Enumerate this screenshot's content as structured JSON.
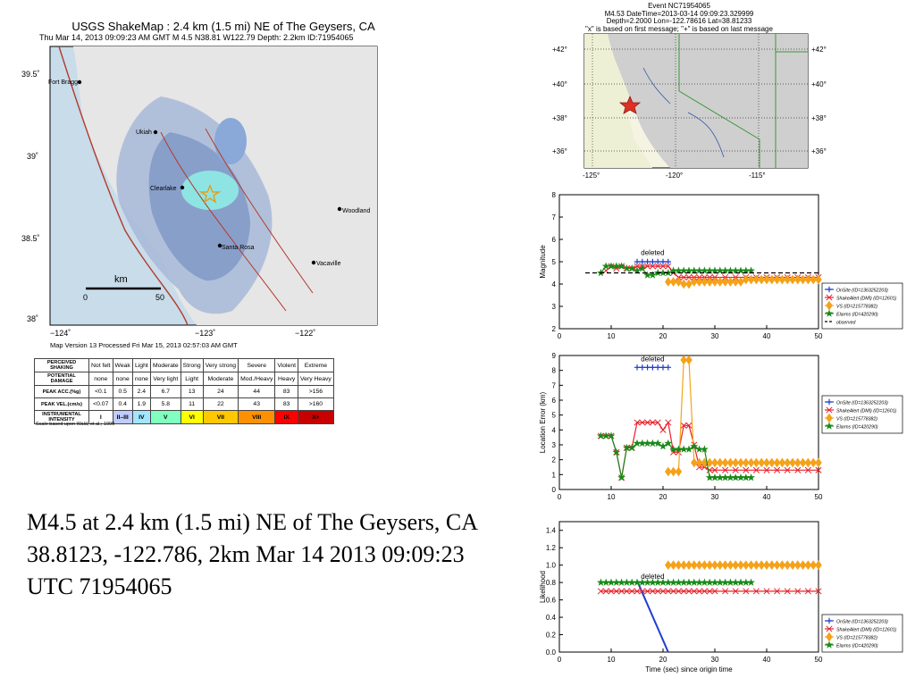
{
  "shakemap": {
    "title": "USGS ShakeMap : 2.4 km (1.5 mi) NE of The Geysers, CA",
    "subtitle": "Thu Mar 14, 2013 09:09:23 AM GMT   M 4.5   N38.81 W122.79   Depth: 2.2km   ID:71954065",
    "version": "Map Version 13 Processed Fri Mar 15, 2013 02:57:03 AM GMT",
    "lat_labels": [
      "39.5˚",
      "39˚",
      "38.5˚",
      "38˚"
    ],
    "lon_labels": [
      "−124˚",
      "−123˚",
      "−122˚"
    ],
    "towns": [
      "Fort Bragg",
      "Ukiah",
      "Clearlake",
      "Santa Rosa",
      "Woodland",
      "Vacaville"
    ],
    "scale": {
      "unit": "km",
      "start": "0",
      "end": "50"
    },
    "colors": {
      "ocean": "#c8dcea",
      "land": "#e6e6e6",
      "shaded": "#a7b8d7",
      "shaded_core": "#7e96c6",
      "epicenter_zone": "#8ff0e6",
      "fault": "#b33a2b",
      "epicenter": "#e0a020"
    }
  },
  "intensity_legend": {
    "rows": [
      {
        "header": "PERCEIVED SHAKING",
        "cells": [
          "Not felt",
          "Weak",
          "Light",
          "Moderate",
          "Strong",
          "Very strong",
          "Severe",
          "Violent",
          "Extreme"
        ]
      },
      {
        "header": "POTENTIAL DAMAGE",
        "cells": [
          "none",
          "none",
          "none",
          "Very light",
          "Light",
          "Moderate",
          "Mod./Heavy",
          "Heavy",
          "Very Heavy"
        ]
      },
      {
        "header": "PEAK ACC.(%g)",
        "cells": [
          "<0.1",
          "0.5",
          "2.4",
          "6.7",
          "13",
          "24",
          "44",
          "83",
          ">156"
        ]
      },
      {
        "header": "PEAK VEL.(cm/s)",
        "cells": [
          "<0.07",
          "0.4",
          "1.9",
          "5.8",
          "11",
          "22",
          "43",
          "83",
          ">160"
        ]
      },
      {
        "header": "INSTRUMENTAL INTENSITY",
        "cells": [
          "I",
          "II–III",
          "IV",
          "V",
          "VI",
          "VII",
          "VIII",
          "IX",
          "X+"
        ]
      }
    ],
    "intensity_colors": [
      "#ffffff",
      "#bfccff",
      "#a0e6ff",
      "#80ffbf",
      "#ffff00",
      "#ffc800",
      "#ff9100",
      "#ff0000",
      "#c80000"
    ],
    "note": "Scale based upon Wald, et al.; 1999"
  },
  "caption": "M4.5 at 2.4 km (1.5 mi) NE of The Geysers, CA 38.8123, -122.786, 2km Mar 14 2013 09:09:23 UTC 71954065",
  "event": {
    "line1": "Event NC71954065",
    "line2": "M4.53 DateTime=2013-03-14 09:09:23.329999",
    "line3": "Depth=2.2000 Lon=-122.78616 Lat=38.81233",
    "line4": "\"x\" is based on first message; \"+\" is based on last message"
  },
  "inset_map": {
    "lat_labels": [
      "+42°",
      "+40°",
      "+38°",
      "+36°"
    ],
    "lon_labels": [
      "-125°",
      "-120°",
      "-115°"
    ]
  },
  "chart_data": [
    {
      "type": "line",
      "title": "",
      "xlabel": "",
      "ylabel": "Magnitude",
      "xlim": [
        0,
        50
      ],
      "ylim": [
        2,
        8
      ],
      "xticks": [
        0,
        10,
        20,
        30,
        40,
        50
      ],
      "yticks": [
        2,
        3,
        4,
        5,
        6,
        7,
        8
      ],
      "annotation": {
        "text": "deleted",
        "x": 18,
        "y": 5.3
      },
      "legend_position": "lower-right",
      "series": [
        {
          "name": "OnSite (ID=1363252203)",
          "color": "#1f3fcf",
          "marker": "plus",
          "x": [
            15,
            16,
            17,
            18,
            19,
            20,
            21
          ],
          "y": [
            5.0,
            5.0,
            5.0,
            5.0,
            5.0,
            5.0,
            5.0
          ]
        },
        {
          "name": "ShakeAlert (DMI) (ID=12601)",
          "color": "#e8202a",
          "marker": "x",
          "x": [
            9,
            10,
            11,
            12,
            13,
            14,
            15,
            16,
            17,
            18,
            19,
            20,
            21,
            22,
            23,
            24,
            25,
            26,
            27,
            28,
            29,
            30,
            32,
            34,
            36,
            38,
            40,
            42,
            44,
            46,
            48,
            50
          ],
          "y": [
            4.6,
            4.8,
            4.7,
            4.8,
            4.7,
            4.7,
            4.8,
            4.8,
            4.8,
            4.8,
            4.8,
            4.8,
            4.8,
            4.5,
            4.3,
            4.3,
            4.3,
            4.3,
            4.3,
            4.3,
            4.3,
            4.3,
            4.3,
            4.3,
            4.3,
            4.3,
            4.3,
            4.3,
            4.3,
            4.3,
            4.3,
            4.3
          ]
        },
        {
          "name": "VS (ID=215778382)",
          "color": "#f5a21b",
          "marker": "diamond",
          "x": [
            21,
            22,
            23,
            24,
            25,
            26,
            27,
            28,
            29,
            30,
            31,
            32,
            33,
            34,
            35,
            36,
            37,
            38,
            39,
            40,
            41,
            42,
            43,
            44,
            45,
            46,
            47,
            48,
            49,
            50
          ],
          "y": [
            4.1,
            4.1,
            4.1,
            4.0,
            4.0,
            4.1,
            4.1,
            4.1,
            4.1,
            4.1,
            4.1,
            4.1,
            4.1,
            4.1,
            4.1,
            4.2,
            4.2,
            4.2,
            4.2,
            4.2,
            4.2,
            4.2,
            4.2,
            4.2,
            4.2,
            4.2,
            4.2,
            4.2,
            4.2,
            4.2
          ]
        },
        {
          "name": "Elarms (ID=420290)",
          "color": "#178a17",
          "marker": "star",
          "x": [
            8,
            9,
            10,
            11,
            12,
            13,
            14,
            15,
            16,
            17,
            18,
            19,
            20,
            21,
            22,
            23,
            24,
            25,
            26,
            27,
            28,
            29,
            30,
            31,
            32,
            33,
            34,
            35,
            36,
            37
          ],
          "y": [
            4.5,
            4.8,
            4.8,
            4.8,
            4.8,
            4.7,
            4.7,
            4.6,
            4.7,
            4.4,
            4.4,
            4.5,
            4.5,
            4.5,
            4.6,
            4.6,
            4.6,
            4.6,
            4.6,
            4.6,
            4.6,
            4.6,
            4.6,
            4.6,
            4.6,
            4.6,
            4.6,
            4.6,
            4.6,
            4.6
          ]
        },
        {
          "name": "observed",
          "color": "#000000",
          "marker": "none",
          "dash": true,
          "x": [
            5,
            50
          ],
          "y": [
            4.5,
            4.5
          ]
        }
      ]
    },
    {
      "type": "line",
      "title": "",
      "xlabel": "",
      "ylabel": "Location Error (km)",
      "xlim": [
        0,
        50
      ],
      "ylim": [
        0,
        9
      ],
      "xticks": [
        0,
        10,
        20,
        30,
        40,
        50
      ],
      "yticks": [
        0,
        1,
        2,
        3,
        4,
        5,
        6,
        7,
        8,
        9
      ],
      "annotation": {
        "text": "deleted",
        "x": 18,
        "y": 8.6
      },
      "legend_position": "right",
      "series": [
        {
          "name": "OnSite (ID=1363252203)",
          "color": "#1f3fcf",
          "marker": "plus",
          "x": [
            15,
            16,
            17,
            18,
            19,
            20,
            21
          ],
          "y": [
            8.2,
            8.2,
            8.2,
            8.2,
            8.2,
            8.2,
            8.2
          ]
        },
        {
          "name": "ShakeAlert (DMI) (ID=12601)",
          "color": "#e8202a",
          "marker": "x",
          "x": [
            8,
            9,
            10,
            11,
            12,
            13,
            14,
            15,
            16,
            17,
            18,
            19,
            20,
            21,
            22,
            23,
            24,
            25,
            26,
            27,
            28,
            29,
            30,
            32,
            34,
            36,
            38,
            40,
            42,
            44,
            46,
            48,
            50
          ],
          "y": [
            3.6,
            3.6,
            3.6,
            2.5,
            0.8,
            2.8,
            2.8,
            4.5,
            4.5,
            4.5,
            4.5,
            4.5,
            4.0,
            4.5,
            2.5,
            2.5,
            4.3,
            4.3,
            3.0,
            1.5,
            1.5,
            1.3,
            1.3,
            1.3,
            1.3,
            1.3,
            1.3,
            1.3,
            1.3,
            1.3,
            1.3,
            1.3,
            1.3
          ]
        },
        {
          "name": "VS (ID=215778382)",
          "color": "#f5a21b",
          "marker": "diamond",
          "x": [
            21,
            22,
            23,
            24,
            25,
            26,
            27,
            28,
            29,
            30,
            31,
            32,
            33,
            34,
            35,
            36,
            37,
            38,
            39,
            40,
            41,
            42,
            43,
            44,
            45,
            46,
            47,
            48,
            49,
            50
          ],
          "y": [
            1.2,
            1.2,
            1.2,
            8.7,
            8.7,
            1.8,
            1.8,
            1.8,
            1.8,
            1.8,
            1.8,
            1.8,
            1.8,
            1.8,
            1.8,
            1.8,
            1.8,
            1.8,
            1.8,
            1.8,
            1.8,
            1.8,
            1.8,
            1.8,
            1.8,
            1.8,
            1.8,
            1.8,
            1.8,
            1.8
          ]
        },
        {
          "name": "Elarms (ID=420290)",
          "color": "#178a17",
          "marker": "star",
          "x": [
            8,
            9,
            10,
            11,
            12,
            13,
            14,
            15,
            16,
            17,
            18,
            19,
            20,
            21,
            22,
            23,
            24,
            25,
            26,
            27,
            28,
            29,
            30,
            31,
            32,
            33,
            34,
            35,
            36,
            37
          ],
          "y": [
            3.6,
            3.6,
            3.6,
            2.5,
            0.8,
            2.8,
            2.8,
            3.1,
            3.1,
            3.1,
            3.1,
            3.1,
            2.9,
            3.1,
            2.7,
            2.7,
            2.7,
            2.7,
            2.9,
            2.7,
            2.7,
            0.8,
            0.8,
            0.8,
            0.8,
            0.8,
            0.8,
            0.8,
            0.8,
            0.8
          ]
        }
      ]
    },
    {
      "type": "line",
      "title": "",
      "xlabel": "Time (sec) since origin time",
      "ylabel": "Likelihood",
      "xlim": [
        0,
        50
      ],
      "ylim": [
        0,
        1.5
      ],
      "xticks": [
        0,
        10,
        20,
        30,
        40,
        50
      ],
      "yticks": [
        0.0,
        0.2,
        0.4,
        0.6,
        0.8,
        1.0,
        1.2,
        1.4
      ],
      "tick_labels_y": [
        "0.0",
        "0.2",
        "0.4",
        "0.6",
        "0.8",
        "1.0",
        "1.2",
        "1.4"
      ],
      "annotation": {
        "text": "deleted",
        "x": 18,
        "y": 0.84
      },
      "legend_position": "lower-right",
      "series": [
        {
          "name": "OnSite (ID=1363252203)",
          "color": "#1f3fcf",
          "marker": "none",
          "x": [
            15,
            21
          ],
          "y": [
            0.82,
            0.0
          ]
        },
        {
          "name": "ShakeAlert (DMI) (ID=12601)",
          "color": "#e8202a",
          "marker": "x",
          "x": [
            8,
            9,
            10,
            11,
            12,
            13,
            14,
            15,
            16,
            17,
            18,
            19,
            20,
            21,
            22,
            23,
            24,
            25,
            26,
            27,
            28,
            29,
            30,
            32,
            34,
            36,
            38,
            40,
            42,
            44,
            46,
            48,
            50
          ],
          "y": [
            0.7,
            0.7,
            0.7,
            0.7,
            0.7,
            0.7,
            0.7,
            0.7,
            0.7,
            0.7,
            0.7,
            0.7,
            0.7,
            0.7,
            0.7,
            0.7,
            0.7,
            0.7,
            0.7,
            0.7,
            0.7,
            0.7,
            0.7,
            0.7,
            0.7,
            0.7,
            0.7,
            0.7,
            0.7,
            0.7,
            0.7,
            0.7,
            0.7
          ]
        },
        {
          "name": "VS (ID=215778382)",
          "color": "#f5a21b",
          "marker": "diamond",
          "x": [
            21,
            22,
            23,
            24,
            25,
            26,
            27,
            28,
            29,
            30,
            31,
            32,
            33,
            34,
            35,
            36,
            37,
            38,
            39,
            40,
            41,
            42,
            43,
            44,
            45,
            46,
            47,
            48,
            49,
            50
          ],
          "y": [
            1.0,
            1.0,
            1.0,
            1.0,
            1.0,
            1.0,
            1.0,
            1.0,
            1.0,
            1.0,
            1.0,
            1.0,
            1.0,
            1.0,
            1.0,
            1.0,
            1.0,
            1.0,
            1.0,
            1.0,
            1.0,
            1.0,
            1.0,
            1.0,
            1.0,
            1.0,
            1.0,
            1.0,
            1.0,
            1.0
          ]
        },
        {
          "name": "Elarms (ID=420290)",
          "color": "#178a17",
          "marker": "star",
          "x": [
            8,
            9,
            10,
            11,
            12,
            13,
            14,
            15,
            16,
            17,
            18,
            19,
            20,
            21,
            22,
            23,
            24,
            25,
            26,
            27,
            28,
            29,
            30,
            31,
            32,
            33,
            34,
            35,
            36,
            37
          ],
          "y": [
            0.8,
            0.8,
            0.8,
            0.8,
            0.8,
            0.8,
            0.8,
            0.8,
            0.8,
            0.8,
            0.8,
            0.8,
            0.8,
            0.8,
            0.8,
            0.8,
            0.8,
            0.8,
            0.8,
            0.8,
            0.8,
            0.8,
            0.8,
            0.8,
            0.8,
            0.8,
            0.8,
            0.8,
            0.8,
            0.8
          ]
        }
      ]
    }
  ]
}
